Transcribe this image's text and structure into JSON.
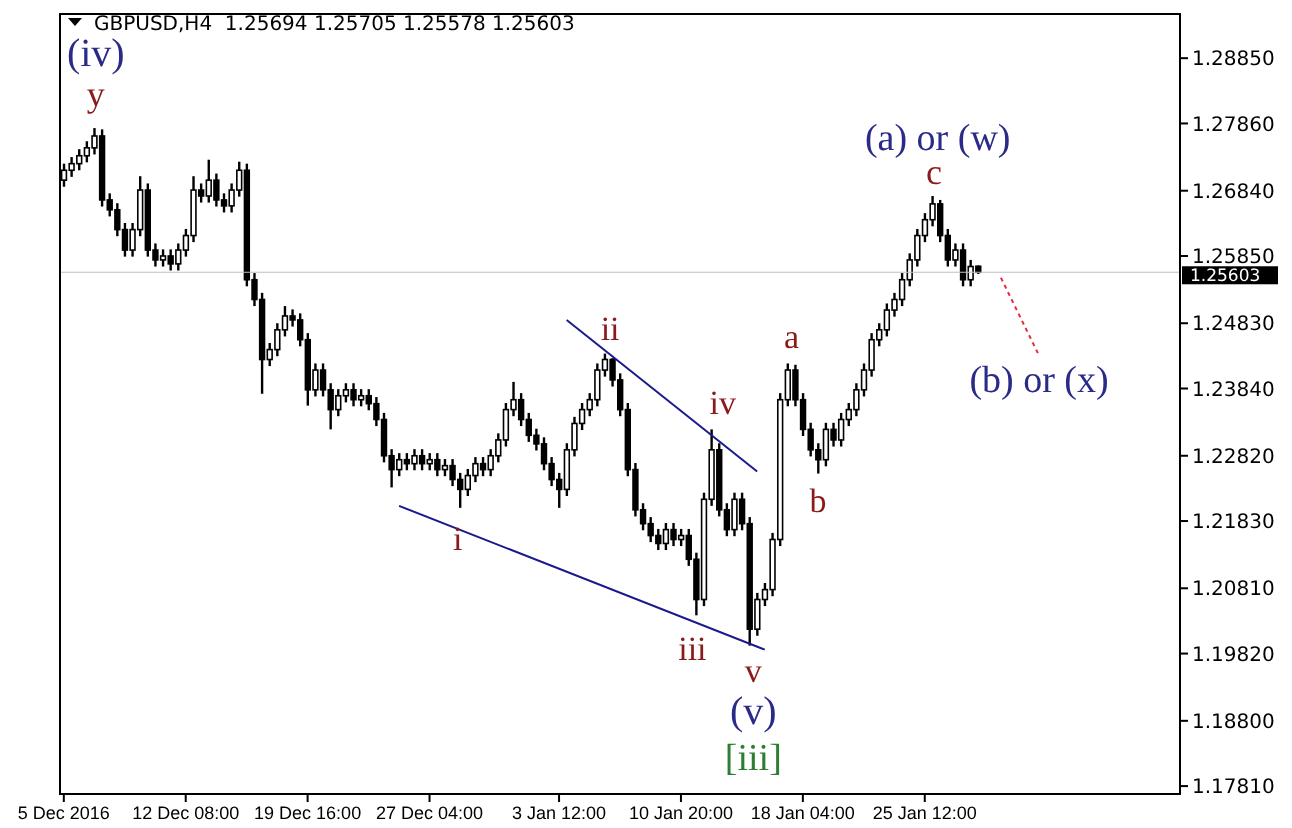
{
  "chart_data": {
    "type": "candlestick",
    "title": "GBPUSD,H4  1.25694 1.25705 1.25578 1.25603",
    "categories": [
      "5 Dec 2016",
      null,
      null,
      null,
      null,
      null,
      null,
      null,
      null,
      null,
      null,
      null,
      null,
      null,
      null,
      null,
      "12 Dec 08:00",
      null,
      null,
      null,
      null,
      null,
      null,
      null,
      null,
      null,
      null,
      null,
      null,
      null,
      null,
      null,
      "19 Dec 16:00",
      null,
      null,
      null,
      null,
      null,
      null,
      null,
      null,
      null,
      null,
      null,
      null,
      null,
      null,
      null,
      "27 Dec 04:00",
      null,
      null,
      null,
      null,
      null,
      null,
      null,
      null,
      null,
      null,
      null,
      null,
      null,
      null,
      null,
      null,
      "3 Jan 12:00",
      null,
      null,
      null,
      null,
      null,
      null,
      null,
      null,
      null,
      null,
      null,
      null,
      null,
      null,
      null,
      "10 Jan 20:00",
      null,
      null,
      null,
      null,
      null,
      null,
      null,
      null,
      null,
      null,
      null,
      null,
      null,
      null,
      null,
      "18 Jan 04:00",
      null,
      null,
      null,
      null,
      null,
      null,
      null,
      null,
      null,
      null,
      null,
      null,
      null,
      null,
      null,
      "25 Jan 12:00",
      null,
      null,
      null,
      null,
      null,
      null,
      null,
      null,
      null,
      null,
      null,
      null,
      null,
      null,
      null,
      null,
      null,
      null,
      null,
      null,
      null,
      null,
      null,
      null,
      null,
      null,
      null,
      null,
      null,
      null,
      null,
      null,
      null
    ],
    "ohlc": [
      [
        1.27,
        1.2725,
        1.269,
        1.2715
      ],
      [
        1.2715,
        1.2735,
        1.2705,
        1.2725
      ],
      [
        1.2725,
        1.2747,
        1.2715,
        1.2737
      ],
      [
        1.2737,
        1.2759,
        1.2727,
        1.2749
      ],
      [
        1.2749,
        1.2779,
        1.2739,
        1.2767
      ],
      [
        1.2767,
        1.2777,
        1.266,
        1.267
      ],
      [
        1.267,
        1.268,
        1.2645,
        1.2655
      ],
      [
        1.2655,
        1.2665,
        1.2615,
        1.2625
      ],
      [
        1.2625,
        1.2635,
        1.2584,
        1.2594
      ],
      [
        1.2594,
        1.2635,
        1.2584,
        1.2625
      ],
      [
        1.2625,
        1.2706,
        1.2615,
        1.2685
      ],
      [
        1.2685,
        1.2695,
        1.2584,
        1.2594
      ],
      [
        1.2594,
        1.2604,
        1.2569,
        1.2579
      ],
      [
        1.2579,
        1.2595,
        1.2569,
        1.2585
      ],
      [
        1.2585,
        1.2595,
        1.2563,
        1.2573
      ],
      [
        1.2573,
        1.2604,
        1.2563,
        1.2594
      ],
      [
        1.2594,
        1.2626,
        1.2584,
        1.2616
      ],
      [
        1.2616,
        1.2706,
        1.2606,
        1.2685
      ],
      [
        1.2685,
        1.2695,
        1.2666,
        1.2676
      ],
      [
        1.2676,
        1.2731,
        1.2666,
        1.27
      ],
      [
        1.27,
        1.271,
        1.266,
        1.267
      ],
      [
        1.267,
        1.268,
        1.2651,
        1.2661
      ],
      [
        1.2661,
        1.2695,
        1.2651,
        1.2685
      ],
      [
        1.2685,
        1.2728,
        1.2675,
        1.2715
      ],
      [
        1.2715,
        1.2725,
        1.2539,
        1.2549
      ],
      [
        1.2549,
        1.2559,
        1.2509,
        1.2519
      ],
      [
        1.2519,
        1.2529,
        1.2376,
        1.2428
      ],
      [
        1.2428,
        1.2453,
        1.2418,
        1.2443
      ],
      [
        1.2443,
        1.2483,
        1.2433,
        1.2473
      ],
      [
        1.2473,
        1.2509,
        1.2463,
        1.2494
      ],
      [
        1.2494,
        1.2504,
        1.2478,
        1.2488
      ],
      [
        1.2488,
        1.2498,
        1.2448,
        1.2458
      ],
      [
        1.2458,
        1.2468,
        1.2358,
        1.2382
      ],
      [
        1.2382,
        1.2422,
        1.2372,
        1.2412
      ],
      [
        1.2412,
        1.2422,
        1.2372,
        1.2382
      ],
      [
        1.2382,
        1.2392,
        1.2322,
        1.2352
      ],
      [
        1.2352,
        1.2383,
        1.2342,
        1.2373
      ],
      [
        1.2373,
        1.2392,
        1.2363,
        1.2382
      ],
      [
        1.2382,
        1.2392,
        1.2357,
        1.2367
      ],
      [
        1.2367,
        1.2383,
        1.2357,
        1.2373
      ],
      [
        1.2373,
        1.2383,
        1.2351,
        1.2361
      ],
      [
        1.2361,
        1.2371,
        1.2327,
        1.2337
      ],
      [
        1.2337,
        1.2347,
        1.2272,
        1.2282
      ],
      [
        1.2282,
        1.2292,
        1.2234,
        1.2261
      ],
      [
        1.2261,
        1.2286,
        1.2251,
        1.2276
      ],
      [
        1.2276,
        1.2286,
        1.226,
        1.227
      ],
      [
        1.227,
        1.2292,
        1.226,
        1.2282
      ],
      [
        1.2282,
        1.2292,
        1.226,
        1.227
      ],
      [
        1.227,
        1.2286,
        1.226,
        1.2276
      ],
      [
        1.2276,
        1.2286,
        1.2251,
        1.2261
      ],
      [
        1.2261,
        1.2277,
        1.2251,
        1.2267
      ],
      [
        1.2267,
        1.2277,
        1.2236,
        1.2246
      ],
      [
        1.2246,
        1.2256,
        1.2203,
        1.2231
      ],
      [
        1.2231,
        1.2262,
        1.2221,
        1.2252
      ],
      [
        1.2252,
        1.228,
        1.2242,
        1.227
      ],
      [
        1.227,
        1.228,
        1.2251,
        1.2261
      ],
      [
        1.2261,
        1.2292,
        1.2251,
        1.2282
      ],
      [
        1.2282,
        1.2316,
        1.2272,
        1.2306
      ],
      [
        1.2306,
        1.2362,
        1.2296,
        1.2352
      ],
      [
        1.2352,
        1.2394,
        1.2342,
        1.2367
      ],
      [
        1.2367,
        1.2377,
        1.2327,
        1.2337
      ],
      [
        1.2337,
        1.2347,
        1.2303,
        1.2313
      ],
      [
        1.2313,
        1.2323,
        1.229,
        1.23
      ],
      [
        1.23,
        1.231,
        1.226,
        1.227
      ],
      [
        1.227,
        1.228,
        1.2236,
        1.2246
      ],
      [
        1.2246,
        1.2256,
        1.2203,
        1.2231
      ],
      [
        1.2231,
        1.2301,
        1.2221,
        1.2291
      ],
      [
        1.2291,
        1.2341,
        1.2281,
        1.2331
      ],
      [
        1.2331,
        1.2362,
        1.2321,
        1.2352
      ],
      [
        1.2352,
        1.2377,
        1.2342,
        1.2367
      ],
      [
        1.2367,
        1.2422,
        1.2357,
        1.2412
      ],
      [
        1.2412,
        1.2437,
        1.2402,
        1.2428
      ],
      [
        1.2428,
        1.243,
        1.2387,
        1.2397
      ],
      [
        1.2397,
        1.2407,
        1.2342,
        1.2352
      ],
      [
        1.2352,
        1.2362,
        1.2251,
        1.2261
      ],
      [
        1.2261,
        1.2271,
        1.219,
        1.22
      ],
      [
        1.22,
        1.221,
        1.2169,
        1.2179
      ],
      [
        1.2179,
        1.2189,
        1.2151,
        1.2161
      ],
      [
        1.2161,
        1.2171,
        1.2139,
        1.2149
      ],
      [
        1.2149,
        1.218,
        1.2139,
        1.217
      ],
      [
        1.217,
        1.218,
        1.2145,
        1.2155
      ],
      [
        1.2155,
        1.2171,
        1.2145,
        1.2161
      ],
      [
        1.2161,
        1.2171,
        1.2115,
        1.2125
      ],
      [
        1.2125,
        1.2135,
        1.204,
        1.2064
      ],
      [
        1.2064,
        1.2226,
        1.2054,
        1.2216
      ],
      [
        1.2216,
        1.2322,
        1.2206,
        1.2291
      ],
      [
        1.2291,
        1.2301,
        1.219,
        1.22
      ],
      [
        1.22,
        1.221,
        1.216,
        1.217
      ],
      [
        1.217,
        1.2226,
        1.216,
        1.2216
      ],
      [
        1.2216,
        1.2226,
        1.2169,
        1.2179
      ],
      [
        1.2179,
        1.2189,
        1.1994,
        1.2019
      ],
      [
        1.2019,
        1.2074,
        1.2009,
        1.2064
      ],
      [
        1.2064,
        1.2089,
        1.2054,
        1.2079
      ],
      [
        1.2079,
        1.2165,
        1.2069,
        1.2155
      ],
      [
        1.2155,
        1.2377,
        1.2145,
        1.2367
      ],
      [
        1.2367,
        1.2422,
        1.2357,
        1.2412
      ],
      [
        1.2412,
        1.242,
        1.2357,
        1.2367
      ],
      [
        1.2367,
        1.2377,
        1.2312,
        1.2322
      ],
      [
        1.2322,
        1.2332,
        1.2281,
        1.2291
      ],
      [
        1.2291,
        1.2301,
        1.2255,
        1.2276
      ],
      [
        1.2276,
        1.2332,
        1.2266,
        1.2322
      ],
      [
        1.2322,
        1.2332,
        1.2296,
        1.2306
      ],
      [
        1.2306,
        1.2347,
        1.2296,
        1.2337
      ],
      [
        1.2337,
        1.2362,
        1.2327,
        1.2352
      ],
      [
        1.2352,
        1.2392,
        1.2342,
        1.2382
      ],
      [
        1.2382,
        1.2422,
        1.2372,
        1.2412
      ],
      [
        1.2412,
        1.2468,
        1.2402,
        1.2458
      ],
      [
        1.2458,
        1.2483,
        1.2448,
        1.2473
      ],
      [
        1.2473,
        1.2513,
        1.2463,
        1.2503
      ],
      [
        1.2503,
        1.2529,
        1.2493,
        1.2519
      ],
      [
        1.2519,
        1.2559,
        1.2509,
        1.2549
      ],
      [
        1.2549,
        1.2589,
        1.2539,
        1.2579
      ],
      [
        1.2579,
        1.2626,
        1.2569,
        1.2616
      ],
      [
        1.2616,
        1.265,
        1.2606,
        1.264
      ],
      [
        1.264,
        1.2676,
        1.263,
        1.2664
      ],
      [
        1.2664,
        1.267,
        1.2606,
        1.2616
      ],
      [
        1.2616,
        1.2626,
        1.2569,
        1.2579
      ],
      [
        1.2579,
        1.2604,
        1.2569,
        1.2594
      ],
      [
        1.2594,
        1.2604,
        1.2539,
        1.2549
      ],
      [
        1.2549,
        1.2579,
        1.2539,
        1.2569
      ],
      [
        1.25694,
        1.25705,
        1.25578,
        1.25603
      ],
      null,
      null,
      null,
      null,
      null,
      null,
      null,
      null,
      null,
      null,
      null,
      null,
      null,
      null,
      null,
      null,
      null,
      null,
      null,
      null,
      null,
      null,
      null,
      null,
      null,
      null
    ],
    "color": "#000000",
    "series": [
      {
        "type": "line",
        "color": "#1a1a8c",
        "values": [
          null,
          null,
          null,
          null,
          null,
          null,
          null,
          null,
          null,
          null,
          null,
          null,
          null,
          null,
          null,
          null,
          null,
          null,
          null,
          null,
          null,
          null,
          null,
          null,
          null,
          null,
          null,
          null,
          null,
          null,
          null,
          null,
          null,
          null,
          null,
          null,
          null,
          null,
          null,
          null,
          null,
          null,
          null,
          null,
          null,
          null,
          null,
          null,
          null,
          null,
          null,
          null,
          null,
          null,
          null,
          null,
          null,
          null,
          null,
          null,
          null,
          null,
          null,
          null,
          null,
          null,
          1.2488,
          null,
          null,
          null,
          null,
          null,
          null,
          null,
          null,
          null,
          null,
          null,
          null,
          null,
          null,
          null,
          null,
          null,
          null,
          null,
          null,
          null,
          null,
          null,
          null,
          1.2258,
          null,
          null,
          null,
          null,
          null,
          null,
          null,
          null,
          null,
          null,
          null,
          null,
          null,
          null,
          null,
          null,
          null,
          null,
          null,
          null,
          null,
          null,
          null,
          null,
          null,
          null,
          null,
          null,
          null,
          null,
          null,
          null,
          null,
          null,
          null,
          null,
          null,
          null,
          null,
          null,
          null,
          null,
          null,
          null,
          null,
          null,
          null,
          null,
          null,
          null,
          null,
          null,
          null,
          null,
          null
        ]
      },
      {
        "type": "line",
        "color": "#1a1a8c",
        "values": [
          null,
          null,
          null,
          null,
          null,
          null,
          null,
          null,
          null,
          null,
          null,
          null,
          null,
          null,
          null,
          null,
          null,
          null,
          null,
          null,
          null,
          null,
          null,
          null,
          null,
          null,
          null,
          null,
          null,
          null,
          null,
          null,
          null,
          null,
          null,
          null,
          null,
          null,
          null,
          null,
          null,
          null,
          null,
          null,
          1.2206,
          null,
          null,
          null,
          null,
          null,
          null,
          null,
          null,
          null,
          null,
          null,
          null,
          null,
          null,
          null,
          null,
          null,
          null,
          null,
          null,
          null,
          null,
          null,
          null,
          null,
          null,
          null,
          null,
          null,
          null,
          null,
          null,
          null,
          null,
          null,
          null,
          null,
          null,
          null,
          null,
          null,
          null,
          null,
          null,
          null,
          null,
          null,
          1.1988,
          null,
          null,
          null,
          null,
          null,
          null,
          null,
          null,
          null,
          null,
          null,
          null,
          null,
          null,
          null,
          null,
          null,
          null,
          null,
          null,
          null,
          null,
          null,
          null,
          null,
          null,
          null,
          null,
          null,
          null,
          null,
          null,
          null,
          null,
          null,
          null,
          null,
          null,
          null,
          null,
          null,
          null,
          null,
          null,
          null,
          null,
          null,
          null,
          null,
          null,
          null,
          null,
          null,
          null
        ]
      },
      {
        "type": "line",
        "color": "#e0303a",
        "line_style": "dotted",
        "values": [
          null,
          null,
          null,
          null,
          null,
          null,
          null,
          null,
          null,
          null,
          null,
          null,
          null,
          null,
          null,
          null,
          null,
          null,
          null,
          null,
          null,
          null,
          null,
          null,
          null,
          null,
          null,
          null,
          null,
          null,
          null,
          null,
          null,
          null,
          null,
          null,
          null,
          null,
          null,
          null,
          null,
          null,
          null,
          null,
          null,
          null,
          null,
          null,
          null,
          null,
          null,
          null,
          null,
          null,
          null,
          null,
          null,
          null,
          null,
          null,
          null,
          null,
          null,
          null,
          null,
          null,
          null,
          null,
          null,
          null,
          null,
          null,
          null,
          null,
          null,
          null,
          null,
          null,
          null,
          null,
          null,
          null,
          null,
          null,
          null,
          null,
          null,
          null,
          null,
          null,
          null,
          null,
          null,
          null,
          null,
          null,
          null,
          null,
          null,
          null,
          null,
          null,
          null,
          null,
          null,
          null,
          null,
          null,
          null,
          null,
          null,
          null,
          null,
          null,
          null,
          null,
          null,
          null,
          null,
          null,
          null,
          null,
          null,
          1.2552,
          null,
          null,
          null,
          null,
          1.2434,
          null,
          null,
          null,
          null,
          null,
          null,
          null,
          null,
          null,
          null,
          null,
          null,
          null,
          null,
          null,
          null,
          null,
          null
        ]
      }
    ],
    "ylim": [
      1.1769,
      1.2952
    ],
    "yticks": [
      {
        "value": 1.2885,
        "label": "1.28850"
      },
      {
        "value": 1.2786,
        "label": "1.27860"
      },
      {
        "value": 1.2684,
        "label": "1.26840"
      },
      {
        "value": 1.2585,
        "label": "1.25850"
      },
      {
        "value": 1.2483,
        "label": "1.24830"
      },
      {
        "value": 1.2384,
        "label": "1.23840"
      },
      {
        "value": 1.2282,
        "label": "1.22820"
      },
      {
        "value": 1.2183,
        "label": "1.21830"
      },
      {
        "value": 1.2081,
        "label": "1.20810"
      },
      {
        "value": 1.1982,
        "label": "1.19820"
      },
      {
        "value": 1.188,
        "label": "1.18800"
      },
      {
        "value": 1.1781,
        "label": "1.17810"
      }
    ],
    "ref_lines": [
      {
        "axis": "y",
        "value": 1.25603,
        "label": "1.25603"
      }
    ],
    "annotations": [
      "(iv)",
      "y",
      "i",
      "ii",
      "iii",
      "iv",
      "v",
      "(v)",
      "[iii]",
      "a",
      "b",
      "c",
      "(a) or (w)",
      "(b) or (x)"
    ]
  }
}
